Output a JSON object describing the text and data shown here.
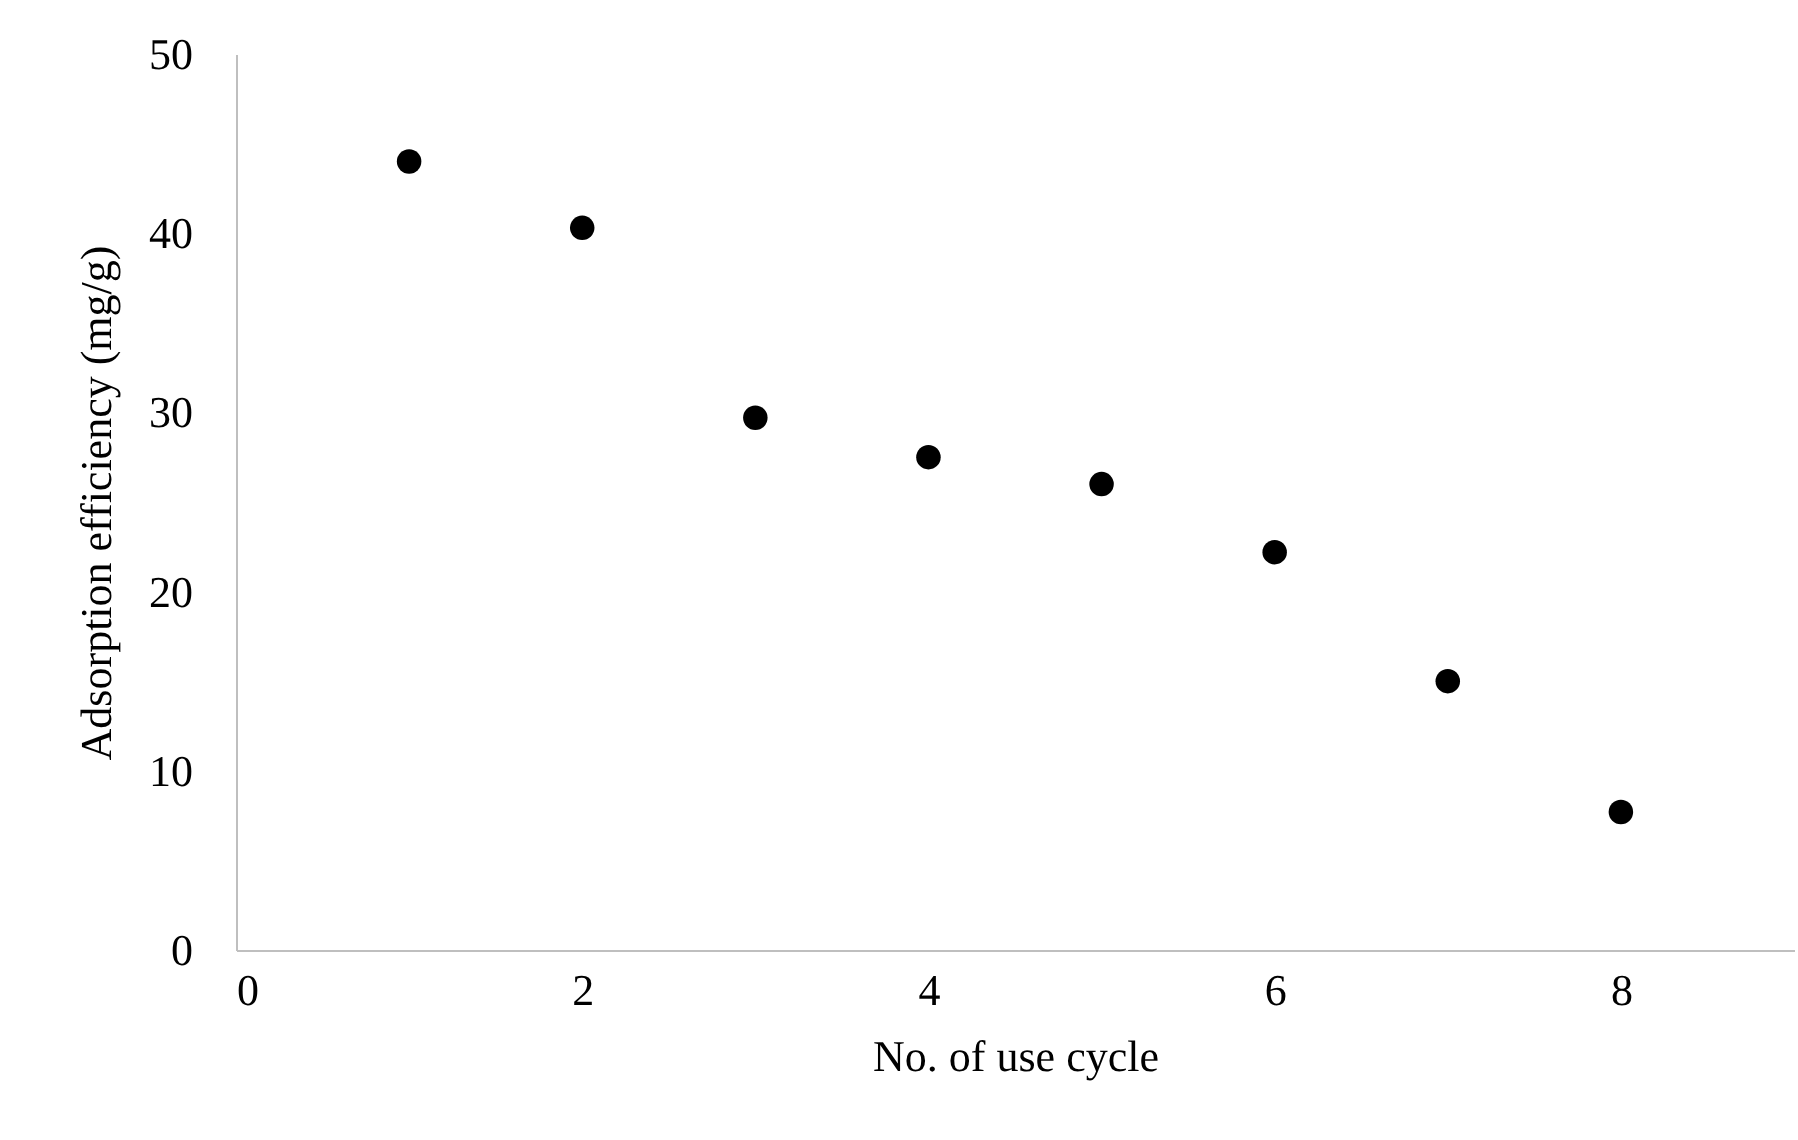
{
  "chart_data": {
    "type": "scatter",
    "xlabel": "No. of use cycle",
    "ylabel": "Adsorption efficiency (mg/g)",
    "x": [
      1,
      2,
      3,
      4,
      5,
      6,
      7,
      8
    ],
    "series": [
      {
        "color": "#000000",
        "values": [
          44,
          40.3,
          29.7,
          27.5,
          26.0,
          22.2,
          15.0,
          7.7
        ]
      }
    ],
    "xlim": [
      0,
      9
    ],
    "xticks": [
      0,
      2,
      4,
      6,
      8
    ],
    "ylim": [
      0,
      50
    ],
    "yticks": [
      0,
      10,
      20,
      30,
      40,
      50
    ],
    "grid": false,
    "marker": "circle"
  }
}
